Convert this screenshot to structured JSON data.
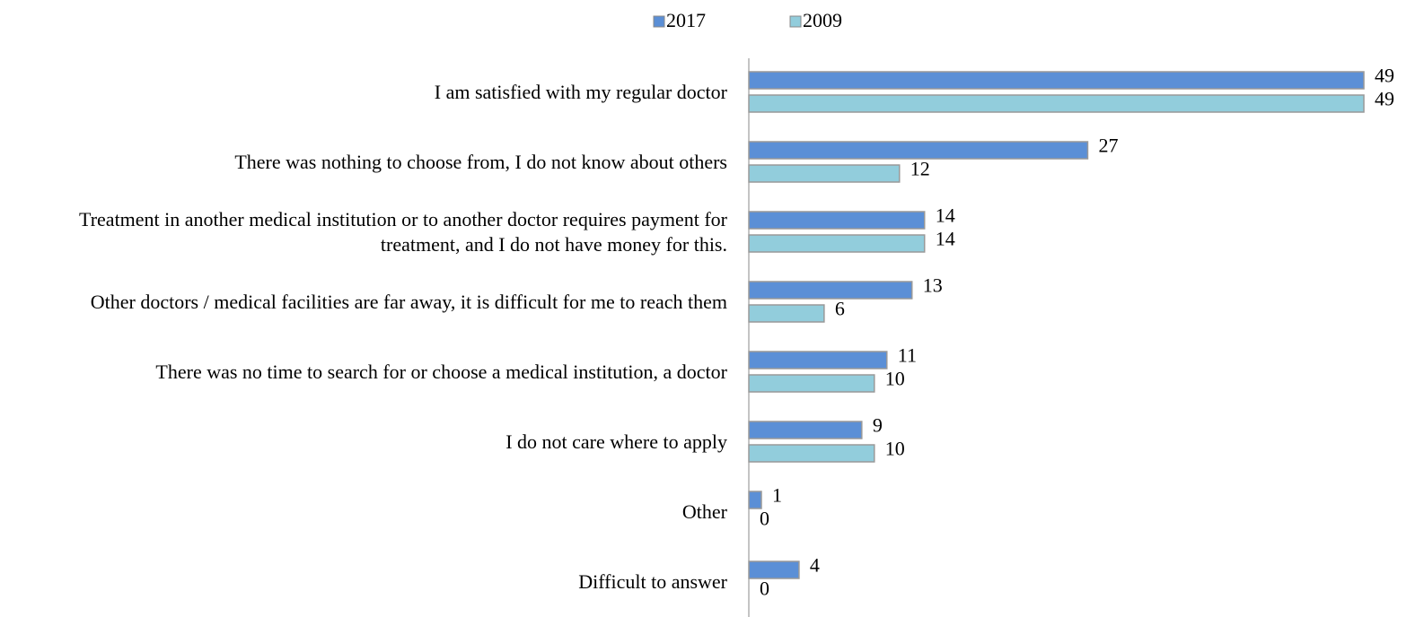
{
  "chart_data": {
    "type": "barh",
    "categories": [
      "I am satisfied with my regular doctor",
      "There was nothing to choose from, I do not know about others",
      "Treatment in another medical institution or to another doctor requires payment for treatment, and I do not have money for this.",
      "Other doctors / medical facilities are far away, it is difficult for me to reach them",
      "There was no time to search for or choose a medical institution, a doctor",
      "I do not care where to apply",
      "Other",
      "Difficult to answer"
    ],
    "series": [
      {
        "name": "2017",
        "color": "#5b8fd6",
        "values": [
          49,
          27,
          14,
          13,
          11,
          9,
          1,
          4
        ]
      },
      {
        "name": "2009",
        "color": "#92cddc",
        "values": [
          49,
          12,
          14,
          6,
          10,
          10,
          0,
          0
        ]
      }
    ],
    "xlim": [
      0,
      50
    ],
    "legend": "top"
  }
}
